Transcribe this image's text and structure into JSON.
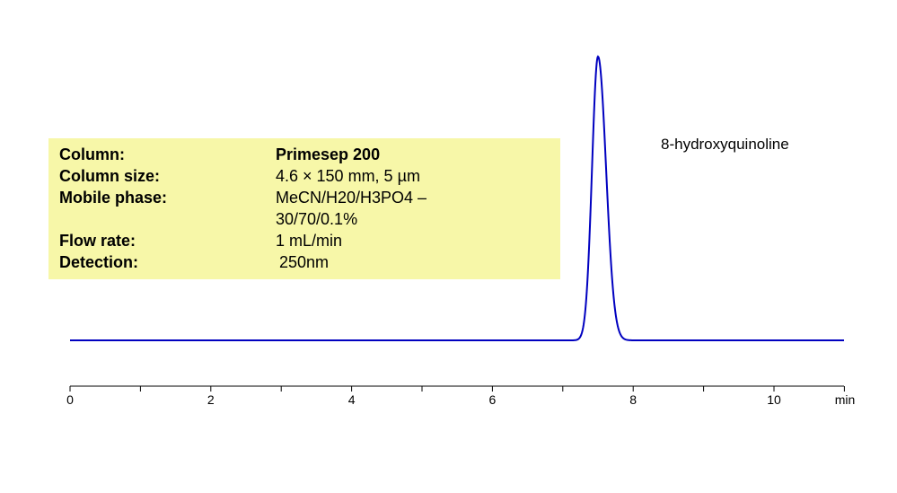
{
  "chart_data": {
    "type": "line",
    "xlabel": "min",
    "xlim": [
      0,
      11
    ],
    "x_ticks": [
      0,
      2,
      4,
      6,
      8,
      10
    ],
    "series": [
      {
        "color": "#0000c0",
        "peaks": [
          {
            "label": "8-hydroxyquinoline",
            "retention_time": 7.5,
            "relative_height": 1.0
          }
        ]
      }
    ],
    "grid": false
  },
  "conditions": [
    {
      "key": "Column:",
      "value": "Primesep 200",
      "value_bold": true
    },
    {
      "key": "Column size:",
      "value": "4.6 × 150 mm, 5 µm",
      "value_bold": false
    },
    {
      "key": "Mobile phase:",
      "value": "MeCN/H20/H3PO4 –",
      "value_bold": false
    },
    {
      "key": "",
      "value": "30/70/0.1%",
      "value_bold": false
    },
    {
      "key": "Flow rate:",
      "value": "1 mL/min",
      "value_bold": false
    },
    {
      "key": "Detection:",
      "value": "250nm",
      "value_bold": false
    }
  ],
  "colors": {
    "trace": "#0000c0",
    "box": "#f7f7a8",
    "axis": "#000000"
  }
}
